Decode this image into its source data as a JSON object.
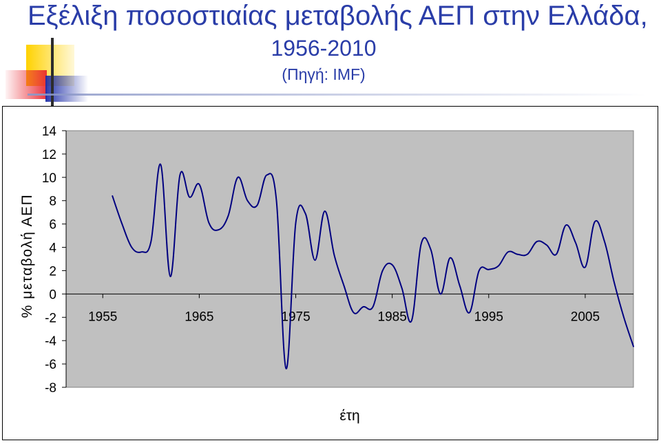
{
  "slide": {
    "title": "Εξέλιξη ποσοστιαίας μεταβολής ΑΕΠ στην Ελλάδα,",
    "subtitle": "1956-2010",
    "source": "(Πηγή: IMF)"
  },
  "colors": {
    "title": "#2a3da8",
    "plot_area": "#c0c0c0",
    "line": "#000080",
    "deco_yellow": "#ffd200",
    "deco_red": "#e8202a",
    "deco_blue": "#1e2ea8"
  },
  "chart_data": {
    "type": "line",
    "title": "",
    "xlabel": "έτη",
    "ylabel": "% μεταβολή ΑΕΠ",
    "xlim": [
      1951.2,
      2010
    ],
    "ylim": [
      -8,
      14
    ],
    "x_ticks": [
      1955,
      1965,
      1975,
      1985,
      1995,
      2005
    ],
    "y_ticks": [
      14,
      12,
      10,
      8,
      6,
      4,
      2,
      0,
      -2,
      -4,
      -6,
      -8
    ],
    "grid": false,
    "legend": "none",
    "series": [
      {
        "x": [
          1956,
          1957,
          1958,
          1959,
          1960,
          1961,
          1962,
          1963,
          1964,
          1965,
          1966,
          1967,
          1968,
          1969,
          1970,
          1971,
          1972,
          1973,
          1974,
          1975,
          1976,
          1977,
          1978,
          1979,
          1980,
          1981,
          1982,
          1983,
          1984,
          1985,
          1986,
          1987,
          1988,
          1989,
          1990,
          1991,
          1992,
          1993,
          1994,
          1995,
          1996,
          1997,
          1998,
          1999,
          2000,
          2001,
          2002,
          2003,
          2004,
          2005,
          2006,
          2007,
          2008,
          2009,
          2010
        ],
        "values": [
          8.4,
          6.0,
          4.0,
          3.6,
          4.5,
          11.1,
          1.5,
          10.2,
          8.3,
          9.4,
          6.1,
          5.5,
          6.7,
          10.0,
          8.0,
          7.6,
          10.2,
          8.0,
          -6.4,
          6.1,
          6.9,
          2.9,
          7.1,
          3.3,
          0.7,
          -1.6,
          -1.1,
          -1.1,
          2.0,
          2.5,
          0.5,
          -2.3,
          4.3,
          3.8,
          0.0,
          3.1,
          0.7,
          -1.6,
          2.0,
          2.1,
          2.4,
          3.6,
          3.4,
          3.4,
          4.5,
          4.2,
          3.4,
          5.9,
          4.4,
          2.3,
          6.2,
          4.5,
          1.0,
          -2.0,
          -4.5
        ]
      }
    ]
  }
}
